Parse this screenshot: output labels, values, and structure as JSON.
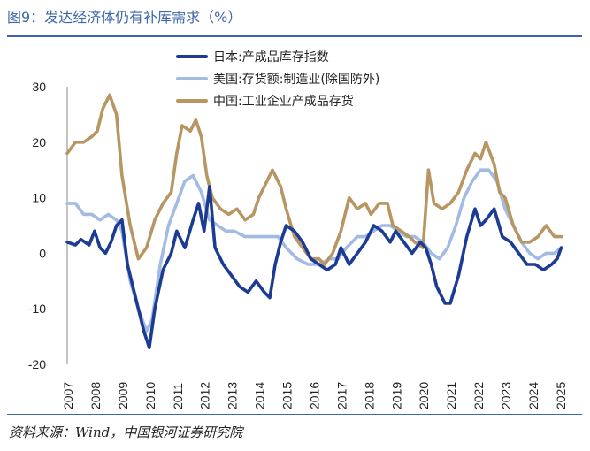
{
  "header": {
    "title": "图9：发达经济体仍有补库需求（%）"
  },
  "footer": {
    "source": "资料来源：Wind，中国银河证券研究院"
  },
  "colors": {
    "japan": "#1c3b92",
    "us": "#a3bbe3",
    "china": "#b89664",
    "axis": "#888888"
  },
  "chart_data": {
    "type": "line",
    "title": "图9：发达经济体仍有补库需求（%）",
    "xlabel": "",
    "ylabel": "",
    "ylim": [
      -20,
      30
    ],
    "xlim": [
      2007.0,
      2025.1
    ],
    "yticks": [
      30,
      20,
      10,
      0,
      -10,
      -20
    ],
    "xticks": [
      "2007",
      "2008",
      "2009",
      "2010",
      "2011",
      "2012",
      "2013",
      "2014",
      "2015",
      "2016",
      "2017",
      "2018",
      "2019",
      "2020",
      "2021",
      "2022",
      "2023",
      "2024",
      "2025"
    ],
    "legend_position": "top-center",
    "series": [
      {
        "name": "日本:产成品库存指数",
        "color": "#1c3b92",
        "points": [
          [
            2007.0,
            2
          ],
          [
            2007.3,
            1.5
          ],
          [
            2007.5,
            2.5
          ],
          [
            2007.8,
            1.5
          ],
          [
            2008.0,
            4
          ],
          [
            2008.2,
            1
          ],
          [
            2008.4,
            0
          ],
          [
            2008.6,
            2
          ],
          [
            2008.8,
            5
          ],
          [
            2009.0,
            6
          ],
          [
            2009.2,
            -2
          ],
          [
            2009.5,
            -8
          ],
          [
            2009.8,
            -14
          ],
          [
            2010.0,
            -17
          ],
          [
            2010.2,
            -10
          ],
          [
            2010.5,
            -3
          ],
          [
            2010.8,
            0
          ],
          [
            2011.0,
            4
          ],
          [
            2011.3,
            1
          ],
          [
            2011.6,
            6
          ],
          [
            2011.8,
            9
          ],
          [
            2012.0,
            4
          ],
          [
            2012.2,
            12
          ],
          [
            2012.4,
            1
          ],
          [
            2012.7,
            -2
          ],
          [
            2013.0,
            -4
          ],
          [
            2013.3,
            -6
          ],
          [
            2013.6,
            -7
          ],
          [
            2013.9,
            -5
          ],
          [
            2014.2,
            -7
          ],
          [
            2014.4,
            -8
          ],
          [
            2014.6,
            -2
          ],
          [
            2014.8,
            2
          ],
          [
            2015.0,
            5
          ],
          [
            2015.3,
            4
          ],
          [
            2015.6,
            2
          ],
          [
            2015.9,
            -1
          ],
          [
            2016.2,
            -2
          ],
          [
            2016.5,
            -3
          ],
          [
            2016.8,
            -2
          ],
          [
            2017.0,
            1
          ],
          [
            2017.3,
            -2
          ],
          [
            2017.6,
            0
          ],
          [
            2017.9,
            2
          ],
          [
            2018.2,
            5
          ],
          [
            2018.5,
            4
          ],
          [
            2018.8,
            2
          ],
          [
            2019.0,
            4
          ],
          [
            2019.3,
            2
          ],
          [
            2019.6,
            0
          ],
          [
            2019.9,
            2
          ],
          [
            2020.1,
            1
          ],
          [
            2020.3,
            -2
          ],
          [
            2020.5,
            -6
          ],
          [
            2020.8,
            -9
          ],
          [
            2021.0,
            -9
          ],
          [
            2021.3,
            -4
          ],
          [
            2021.6,
            3
          ],
          [
            2021.9,
            8
          ],
          [
            2022.1,
            5
          ],
          [
            2022.3,
            6
          ],
          [
            2022.6,
            8
          ],
          [
            2022.9,
            3
          ],
          [
            2023.2,
            2
          ],
          [
            2023.5,
            0
          ],
          [
            2023.8,
            -2
          ],
          [
            2024.1,
            -2
          ],
          [
            2024.4,
            -3
          ],
          [
            2024.7,
            -2
          ],
          [
            2024.9,
            -1
          ],
          [
            2025.05,
            1
          ]
        ]
      },
      {
        "name": "美国:存货额:制造业(除国防外)",
        "color": "#a3bbe3",
        "points": [
          [
            2007.0,
            9
          ],
          [
            2007.3,
            9
          ],
          [
            2007.6,
            7
          ],
          [
            2007.9,
            7
          ],
          [
            2008.2,
            6
          ],
          [
            2008.5,
            7
          ],
          [
            2008.8,
            6
          ],
          [
            2009.0,
            4
          ],
          [
            2009.3,
            -5
          ],
          [
            2009.6,
            -10
          ],
          [
            2009.9,
            -14
          ],
          [
            2010.1,
            -12
          ],
          [
            2010.4,
            -2
          ],
          [
            2010.7,
            5
          ],
          [
            2011.0,
            9
          ],
          [
            2011.3,
            13
          ],
          [
            2011.6,
            14
          ],
          [
            2011.9,
            11
          ],
          [
            2012.2,
            6
          ],
          [
            2012.5,
            5
          ],
          [
            2012.8,
            4
          ],
          [
            2013.1,
            4
          ],
          [
            2013.5,
            3
          ],
          [
            2013.9,
            3
          ],
          [
            2014.3,
            3
          ],
          [
            2014.7,
            3
          ],
          [
            2015.0,
            1
          ],
          [
            2015.4,
            -1
          ],
          [
            2015.8,
            -2
          ],
          [
            2016.2,
            -2
          ],
          [
            2016.6,
            -1
          ],
          [
            2016.9,
            -1
          ],
          [
            2017.2,
            1
          ],
          [
            2017.6,
            3
          ],
          [
            2017.9,
            3
          ],
          [
            2018.2,
            4
          ],
          [
            2018.5,
            5
          ],
          [
            2018.8,
            5
          ],
          [
            2019.1,
            4
          ],
          [
            2019.4,
            3
          ],
          [
            2019.7,
            3
          ],
          [
            2020.0,
            2
          ],
          [
            2020.3,
            0
          ],
          [
            2020.6,
            -1
          ],
          [
            2020.9,
            1
          ],
          [
            2021.2,
            5
          ],
          [
            2021.5,
            10
          ],
          [
            2021.8,
            13
          ],
          [
            2022.1,
            15
          ],
          [
            2022.4,
            15
          ],
          [
            2022.7,
            13
          ],
          [
            2023.0,
            8
          ],
          [
            2023.3,
            5
          ],
          [
            2023.6,
            2
          ],
          [
            2023.9,
            0
          ],
          [
            2024.2,
            -1
          ],
          [
            2024.5,
            0
          ],
          [
            2024.8,
            0
          ],
          [
            2025.05,
            1
          ]
        ]
      },
      {
        "name": "中国:工业企业产成品存货",
        "color": "#b89664",
        "points": [
          [
            2007.0,
            18
          ],
          [
            2007.3,
            20
          ],
          [
            2007.6,
            20
          ],
          [
            2007.9,
            21
          ],
          [
            2008.1,
            22
          ],
          [
            2008.3,
            26
          ],
          [
            2008.55,
            28.5
          ],
          [
            2008.8,
            25
          ],
          [
            2009.0,
            14
          ],
          [
            2009.3,
            5
          ],
          [
            2009.6,
            -1
          ],
          [
            2009.9,
            1
          ],
          [
            2010.2,
            6
          ],
          [
            2010.5,
            9
          ],
          [
            2010.8,
            11
          ],
          [
            2011.0,
            18
          ],
          [
            2011.2,
            23
          ],
          [
            2011.5,
            22
          ],
          [
            2011.7,
            24
          ],
          [
            2011.9,
            21
          ],
          [
            2012.1,
            14
          ],
          [
            2012.3,
            10
          ],
          [
            2012.6,
            8
          ],
          [
            2012.9,
            7
          ],
          [
            2013.2,
            8
          ],
          [
            2013.5,
            6
          ],
          [
            2013.8,
            7
          ],
          [
            2014.0,
            10
          ],
          [
            2014.3,
            13
          ],
          [
            2014.5,
            15
          ],
          [
            2014.8,
            12
          ],
          [
            2015.0,
            8
          ],
          [
            2015.3,
            3
          ],
          [
            2015.6,
            1
          ],
          [
            2015.9,
            -1
          ],
          [
            2016.2,
            -1
          ],
          [
            2016.4,
            -2
          ],
          [
            2016.7,
            0
          ],
          [
            2017.0,
            4
          ],
          [
            2017.3,
            10
          ],
          [
            2017.6,
            8
          ],
          [
            2017.9,
            9
          ],
          [
            2018.1,
            7
          ],
          [
            2018.4,
            9
          ],
          [
            2018.7,
            9
          ],
          [
            2018.9,
            5
          ],
          [
            2019.2,
            4
          ],
          [
            2019.5,
            3
          ],
          [
            2019.7,
            2
          ],
          [
            2020.0,
            1
          ],
          [
            2020.2,
            15
          ],
          [
            2020.4,
            9
          ],
          [
            2020.7,
            8
          ],
          [
            2021.0,
            9
          ],
          [
            2021.3,
            11
          ],
          [
            2021.6,
            15
          ],
          [
            2021.9,
            18
          ],
          [
            2022.1,
            17
          ],
          [
            2022.3,
            20
          ],
          [
            2022.6,
            16
          ],
          [
            2022.8,
            11
          ],
          [
            2023.0,
            10
          ],
          [
            2023.3,
            5
          ],
          [
            2023.6,
            2
          ],
          [
            2023.9,
            2
          ],
          [
            2024.2,
            3
          ],
          [
            2024.5,
            5
          ],
          [
            2024.8,
            3
          ],
          [
            2025.05,
            3
          ]
        ]
      }
    ]
  }
}
